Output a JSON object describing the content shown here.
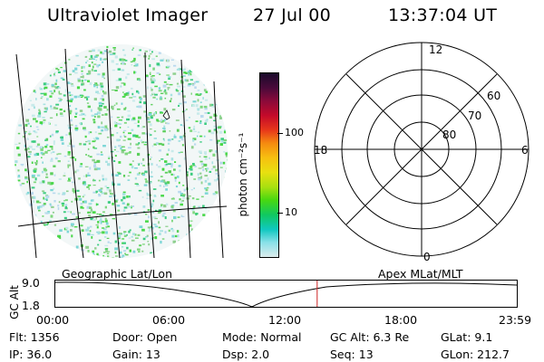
{
  "header": {
    "title": "Ultraviolet Imager",
    "date": "27 Jul 00",
    "time": "13:37:04 UT"
  },
  "colorbar": {
    "label": "photon cm⁻²s⁻¹",
    "ticks": [
      "100",
      "10"
    ],
    "colors": [
      "#1a0a2a",
      "#4a0a3a",
      "#8a0a3a",
      "#c40a2a",
      "#e8381a",
      "#f58a10",
      "#f7c010",
      "#e8e010",
      "#a8e010",
      "#48d810",
      "#10c860",
      "#10c8c0",
      "#88e0e8",
      "#dcecec"
    ]
  },
  "polar": {
    "mlt_labels": {
      "top": "12",
      "left": "18",
      "right": "6",
      "bottom": "0"
    },
    "lat_labels": [
      "60",
      "70",
      "80"
    ]
  },
  "plot": {
    "ylabel": "GC Alt",
    "yticks": [
      "9.0",
      "1.8"
    ],
    "left_label": "Geographic Lat/Lon",
    "right_label": "Apex MLat/MLT",
    "xticks": [
      "00:00",
      "06:00",
      "12:00",
      "18:00",
      "23:59"
    ],
    "current_time_fraction": 0.5674,
    "marker_color": "#cc2222"
  },
  "info": {
    "row1": [
      "Flt: 1356",
      "Door: Open",
      "Mode: Normal",
      "GC Alt: 6.3 Re",
      "GLat:  9.1"
    ],
    "row2": [
      "IP: 36.0",
      "Gain: 13",
      "Dsp:   2.0",
      "Seq: 13",
      "GLon: 212.7"
    ]
  }
}
